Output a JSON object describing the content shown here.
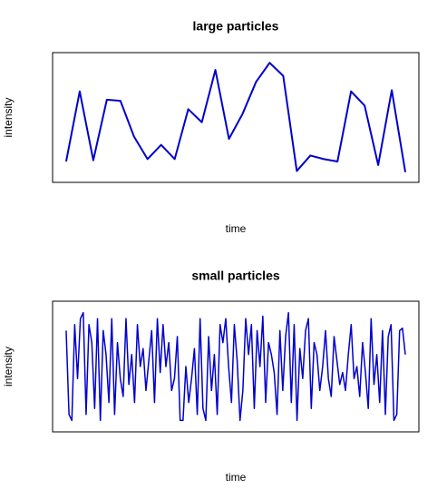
{
  "chart_data": [
    {
      "type": "line",
      "title": "large particles",
      "xlabel": "time",
      "ylabel": "intensity",
      "x": [
        1,
        2,
        3,
        4,
        5,
        6,
        7,
        8,
        9,
        10,
        11,
        12,
        13,
        14,
        15,
        16,
        17,
        18,
        19,
        20,
        21,
        22,
        23,
        24,
        25,
        26
      ],
      "series": [
        {
          "color": "#0000cd",
          "values": [
            13,
            72,
            14,
            65,
            64,
            34,
            15,
            27,
            15,
            57,
            46,
            90,
            32,
            53,
            80,
            96,
            85,
            5,
            18,
            15,
            13,
            72,
            60,
            10,
            73,
            4
          ]
        }
      ],
      "xlim": [
        0,
        27
      ],
      "ylim": [
        0,
        100
      ]
    },
    {
      "type": "line",
      "title": "small particles",
      "xlabel": "time",
      "ylabel": "intensity",
      "x": [
        1,
        2,
        3,
        4,
        5,
        6,
        7,
        8,
        9,
        10,
        11,
        12,
        13,
        14,
        15,
        16,
        17,
        18,
        19,
        20,
        21,
        22,
        23,
        24,
        25,
        26,
        27,
        28,
        29,
        30,
        31,
        32,
        33,
        34,
        35,
        36,
        37,
        38,
        39,
        40,
        41,
        42,
        43,
        44,
        45,
        46,
        47,
        48,
        49,
        50,
        51,
        52,
        53,
        54,
        55,
        56,
        57,
        58,
        59,
        60,
        61,
        62,
        63,
        64,
        65,
        66,
        67,
        68,
        69,
        70,
        71,
        72,
        73,
        74,
        75,
        76,
        77,
        78,
        79,
        80,
        81,
        82,
        83,
        84,
        85,
        86,
        87,
        88,
        89,
        90,
        91,
        92,
        93,
        94,
        95,
        96,
        97,
        98,
        99,
        100,
        101,
        102,
        103,
        104,
        105,
        106,
        107,
        108,
        109,
        110,
        111,
        112,
        113,
        114,
        115,
        116,
        117,
        118,
        119,
        120
      ],
      "series": [
        {
          "color": "#0000cd",
          "values": [
            80,
            10,
            5,
            85,
            40,
            90,
            95,
            10,
            85,
            70,
            15,
            90,
            5,
            80,
            60,
            20,
            90,
            10,
            70,
            40,
            25,
            90,
            35,
            60,
            20,
            85,
            50,
            65,
            30,
            55,
            80,
            20,
            90,
            45,
            85,
            50,
            70,
            30,
            40,
            75,
            5,
            5,
            50,
            20,
            40,
            65,
            10,
            90,
            15,
            5,
            75,
            30,
            60,
            10,
            85,
            70,
            90,
            50,
            20,
            85,
            55,
            5,
            30,
            90,
            60,
            85,
            15,
            80,
            50,
            92,
            20,
            70,
            60,
            45,
            10,
            80,
            30,
            75,
            95,
            20,
            85,
            5,
            65,
            40,
            80,
            90,
            15,
            70,
            60,
            30,
            50,
            80,
            40,
            25,
            75,
            55,
            35,
            45,
            30,
            60,
            85,
            40,
            50,
            25,
            70,
            45,
            15,
            90,
            35,
            60,
            20,
            80,
            10,
            75,
            85,
            5,
            10,
            80,
            82,
            60
          ]
        }
      ],
      "xlim": [
        -3.76,
        124.76
      ],
      "ylim": [
        0,
        100
      ]
    }
  ]
}
